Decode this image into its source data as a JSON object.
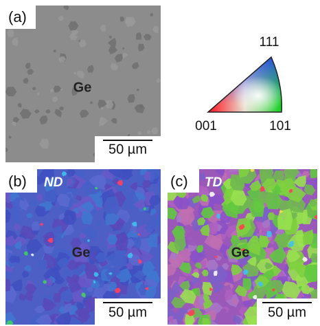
{
  "panels": [
    {
      "label": "(a)",
      "material": "Ge",
      "scale_bar": "50 µm"
    },
    {
      "label": "(b)",
      "orientation": "ND",
      "material": "Ge",
      "scale_bar": "50 µm"
    },
    {
      "label": "(c)",
      "orientation": "TD",
      "material": "Ge",
      "scale_bar": "50 µm"
    }
  ],
  "legend": {
    "top": "111",
    "bottom_left": "001",
    "bottom_right": "101"
  }
}
